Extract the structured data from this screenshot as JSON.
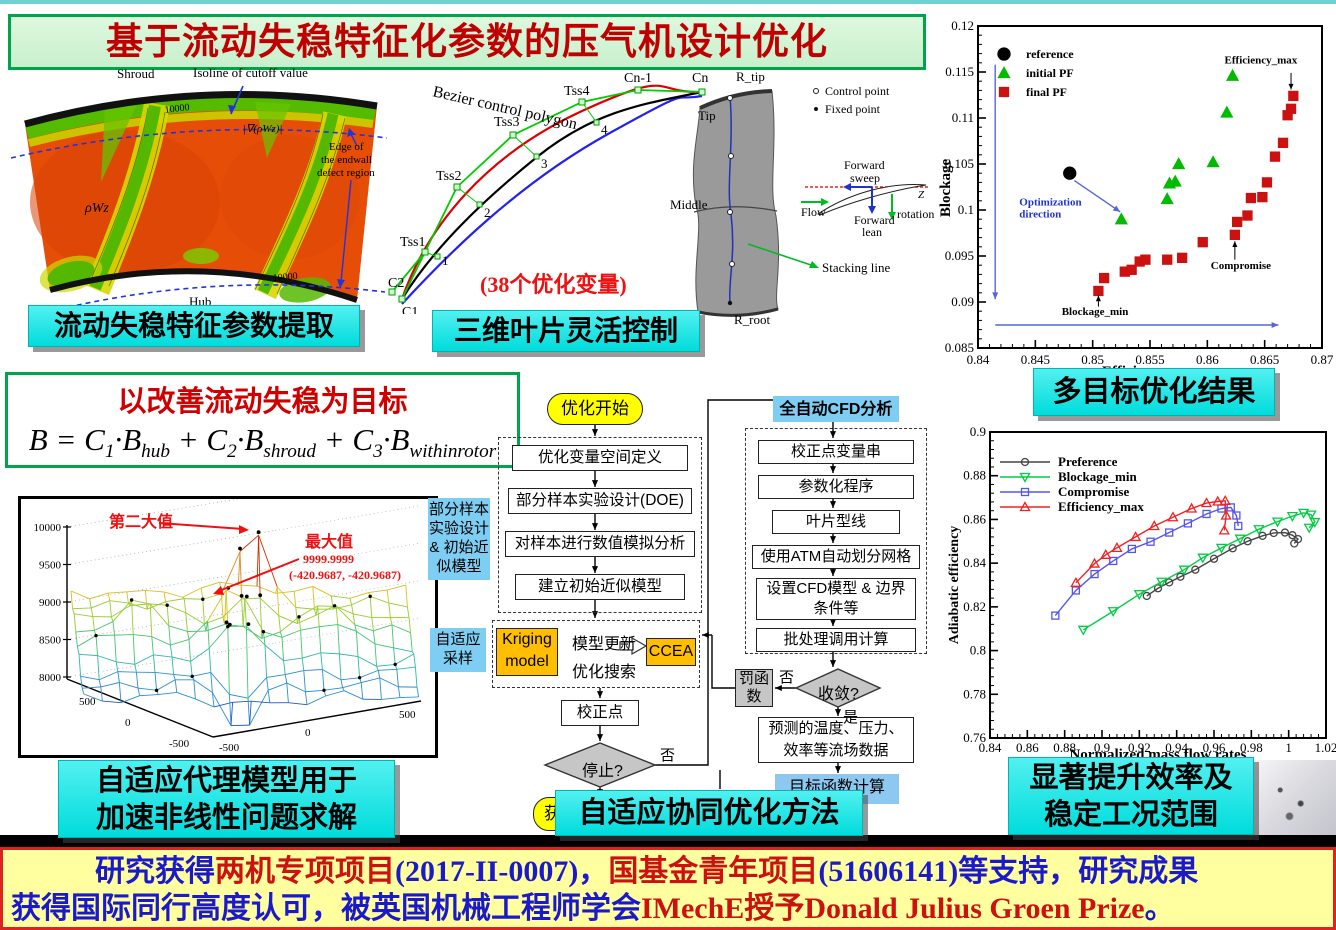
{
  "title": "基于流动失稳特征化参数的压气机设计优化",
  "contour": {
    "shroud": "Shroud",
    "hub": "Hub",
    "isoline": "Isoline of cutoff value",
    "value_top": "10000",
    "value_bottom": "10000",
    "grad_label": "|∇(ρWz)|",
    "field_label": "ρWz",
    "edge_l1": "Edge of",
    "edge_l2": "the endwall",
    "edge_l3": "defect region",
    "caption": "流动失稳特征参数提取"
  },
  "bezier": {
    "polygon_label": "Bezier control polygon",
    "tss": [
      "Tss1",
      "Tss2",
      "Tss3",
      "Tss4"
    ],
    "c1": "C1",
    "c2": "C2",
    "cn1": "Cn-1",
    "cn": "Cn",
    "nums": [
      "1",
      "2",
      "3",
      "4"
    ],
    "note": "(38个优化变量)",
    "caption": "三维叶片灵活控制"
  },
  "blade": {
    "r_tip": "R_tip",
    "tip": "Tip",
    "middle": "Middle",
    "r_root": "R_root",
    "stacking": "Stacking line",
    "legend_control": "Control point",
    "legend_fixed": "Fixed point",
    "fs1": "Forward",
    "fs2": "sweep",
    "fl1": "Forward",
    "fl2": "lean",
    "flow": "Flow",
    "rotation": "rotation",
    "z": "Z"
  },
  "scatter_caption": "多目标优化结果",
  "objective": {
    "heading": "以改善流动失稳为目标",
    "f": {
      "lhs": "B",
      "eq": " = ",
      "c": "C",
      "s1": "1",
      "s2": "2",
      "s3": "3",
      "dot": "·",
      "b": "B",
      "hub": "hub",
      "shroud": "shroud",
      "rotor": "withinrotor",
      "plus": " + "
    }
  },
  "surface": {
    "second_max": "第二大值",
    "max_label": "最大值",
    "max_value": "9999.9999",
    "max_coord": "(-420.9687, -420.9687)",
    "caption_l1": "自适应代理模型用于",
    "caption_l2": "加速非线性问题求解"
  },
  "flow": {
    "start": "优化开始",
    "left_steps": [
      "优化变量空间定义",
      "部分样本实验设计(DOE)",
      "对样本进行数值模拟分析",
      "建立初始近似模型"
    ],
    "side1_l1": "部分样本",
    "side1_l2": "实验设计",
    "side1_l3": "& 初始近",
    "side1_l4": "似模型",
    "side2_l1": "自适应",
    "side2_l2": "采样",
    "kriging_l1": "Kriging",
    "kriging_l2": "model",
    "ccea": "CCEA",
    "model_update": "模型更新",
    "opt_search": "优化搜索",
    "correction": "校正点",
    "stop": "停止?",
    "no1": "否",
    "yes1": "是",
    "result_partial": "获",
    "cfd_title": "全自动CFD分析",
    "right_steps": [
      "校正点变量串",
      "参数化程序",
      "叶片型线",
      "使用ATM自动划分网格",
      "设置CFD模型 & 边界",
      "条件等",
      "批处理调用计算"
    ],
    "converge": "收敛?",
    "no2": "否",
    "yes2": "是",
    "penalty_l1": "罚函",
    "penalty_l2": "数",
    "predicted_l1": "预测的温度、压力、",
    "predicted_l2": "效率等流场数据",
    "objective_calc": "目标函数计算",
    "caption": "自适应协同优化方法"
  },
  "perf_caption_l1": "显著提升效率及",
  "perf_caption_l2": "稳定工况范围",
  "footer": {
    "line1": [
      {
        "text": "研究获得"
      },
      {
        "text": "两机专项项目"
      },
      {
        "text": "(2017-II-0007)，"
      },
      {
        "text": "国基金青年项目"
      },
      {
        "text": "(51606141)等支持，研究成果"
      }
    ],
    "line2": [
      {
        "text": "获得国际同行高度认可，被英国机械工程师学会"
      },
      {
        "text": "IMechE授予Donald Julius Groen Prize"
      },
      {
        "text": "。"
      }
    ]
  },
  "colors": {
    "caption_bg": "#00dcdc",
    "title_text": "#c00000",
    "green_border": "#00a54a",
    "footer_bg": "#ffffa0",
    "footer_blue": "#1a1acc",
    "footer_red": "#cc1111",
    "flow_blue": "#7ecdf2",
    "flow_orange": "#ffbf00",
    "flow_yellow": "#ffff00",
    "flow_gray": "#c6c6c6"
  },
  "chart_data": [
    {
      "type": "scatter",
      "xlabel": "Efficiency",
      "ylabel": "Blockage",
      "xlim": [
        0.84,
        0.87
      ],
      "ylim": [
        0.085,
        0.12
      ],
      "xticks": [
        0.84,
        0.845,
        0.85,
        0.855,
        0.86,
        0.865,
        0.87
      ],
      "yticks": [
        0.085,
        0.09,
        0.095,
        0.1,
        0.105,
        0.11,
        0.115,
        0.12
      ],
      "series": [
        {
          "name": "reference",
          "marker": "circle",
          "color": "#000000",
          "points": [
            [
              0.848,
              0.104
            ]
          ]
        },
        {
          "name": "initial PF",
          "marker": "triangle-up",
          "color": "#00bb00",
          "points": [
            [
              0.8525,
              0.099
            ],
            [
              0.8565,
              0.1012
            ],
            [
              0.8567,
              0.1029
            ],
            [
              0.8572,
              0.1031
            ],
            [
              0.8575,
              0.105
            ],
            [
              0.8605,
              0.1052
            ],
            [
              0.8617,
              0.1106
            ],
            [
              0.8622,
              0.1146
            ]
          ]
        },
        {
          "name": "final PF",
          "marker": "square",
          "color": "#cc1111",
          "points": [
            [
              0.8505,
              0.0912
            ],
            [
              0.851,
              0.0926
            ],
            [
              0.8528,
              0.0933
            ],
            [
              0.8534,
              0.0935
            ],
            [
              0.8541,
              0.0944
            ],
            [
              0.8546,
              0.0946
            ],
            [
              0.8565,
              0.0946
            ],
            [
              0.8578,
              0.0948
            ],
            [
              0.8596,
              0.0965
            ],
            [
              0.8624,
              0.0973
            ],
            [
              0.8626,
              0.0987
            ],
            [
              0.8635,
              0.0994
            ],
            [
              0.8638,
              0.1013
            ],
            [
              0.8648,
              0.1014
            ],
            [
              0.8652,
              0.103
            ],
            [
              0.8659,
              0.1058
            ],
            [
              0.8666,
              0.1073
            ],
            [
              0.867,
              0.1103
            ],
            [
              0.8673,
              0.111
            ],
            [
              0.8675,
              0.1124
            ]
          ]
        }
      ],
      "annotations": [
        {
          "lines": [
            "Efficiency_max"
          ],
          "tx": 0.8615,
          "ty": 0.1159,
          "color": "#000000",
          "ax": 0.8673,
          "ay": 0.1149,
          "bx": 0.8673,
          "by": 0.1131
        },
        {
          "lines": [
            "Compromise"
          ],
          "tx": 0.8603,
          "ty": 0.0936,
          "color": "#000000",
          "ax": 0.8624,
          "ay": 0.0946,
          "bx": 0.8624,
          "by": 0.0966
        },
        {
          "lines": [
            "Blockage_min"
          ],
          "tx": 0.8473,
          "ty": 0.0886,
          "color": "#000000",
          "ax": 0.8505,
          "ay": 0.0895,
          "bx": 0.8505,
          "by": 0.0907
        },
        {
          "lines": [
            "Optimization",
            "direction"
          ],
          "tx": 0.8436,
          "ty": 0.1005,
          "color": "#2233cc"
        }
      ],
      "guides": [
        {
          "from": [
            0.8415,
            0.1158
          ],
          "to": [
            0.8415,
            0.0903
          ]
        },
        {
          "from": [
            0.8415,
            0.0875
          ],
          "to": [
            0.8662,
            0.0875
          ]
        },
        {
          "from": [
            0.8484,
            0.1032
          ],
          "to": [
            0.8524,
            0.0998
          ]
        }
      ]
    },
    {
      "type": "line",
      "xlabel": "Normalized mass flow rates",
      "ylabel": "Adiabatic efficiency",
      "xlim": [
        0.84,
        1.02
      ],
      "ylim": [
        0.76,
        0.9
      ],
      "xticks": [
        0.84,
        0.86,
        0.88,
        0.9,
        0.92,
        0.94,
        0.96,
        0.98,
        1,
        1.02
      ],
      "yticks": [
        0.76,
        0.78,
        0.8,
        0.82,
        0.84,
        0.86,
        0.88,
        0.9
      ],
      "series": [
        {
          "name": "Preference",
          "color": "#444444",
          "marker": "circle",
          "points": [
            [
              0.924,
              0.825
            ],
            [
              0.93,
              0.8285
            ],
            [
              0.936,
              0.8312
            ],
            [
              0.942,
              0.8338
            ],
            [
              0.95,
              0.837
            ],
            [
              0.96,
              0.842
            ],
            [
              0.97,
              0.8468
            ],
            [
              0.978,
              0.85
            ],
            [
              0.986,
              0.8525
            ],
            [
              0.992,
              0.8538
            ],
            [
              0.998,
              0.854
            ],
            [
              1.002,
              0.8528
            ],
            [
              1.005,
              0.851
            ],
            [
              1.003,
              0.849
            ]
          ]
        },
        {
          "name": "Blockage_min",
          "color": "#00cc44",
          "marker": "triangle-down",
          "points": [
            [
              0.89,
              0.8095
            ],
            [
              0.906,
              0.818
            ],
            [
              0.92,
              0.8258
            ],
            [
              0.932,
              0.8315
            ],
            [
              0.944,
              0.837
            ],
            [
              0.954,
              0.8425
            ],
            [
              0.964,
              0.847
            ],
            [
              0.974,
              0.8512
            ],
            [
              0.984,
              0.8555
            ],
            [
              0.994,
              0.859
            ],
            [
              1.002,
              0.8615
            ],
            [
              1.008,
              0.863
            ],
            [
              1.012,
              0.8622
            ],
            [
              1.014,
              0.8588
            ],
            [
              1.011,
              0.8562
            ]
          ]
        },
        {
          "name": "Compromise",
          "color": "#5555ee",
          "marker": "square",
          "points": [
            [
              0.875,
              0.816
            ],
            [
              0.886,
              0.8275
            ],
            [
              0.896,
              0.835
            ],
            [
              0.906,
              0.841
            ],
            [
              0.916,
              0.8465
            ],
            [
              0.926,
              0.8498
            ],
            [
              0.936,
              0.854
            ],
            [
              0.946,
              0.8582
            ],
            [
              0.956,
              0.8625
            ],
            [
              0.964,
              0.865
            ],
            [
              0.969,
              0.8655
            ],
            [
              0.972,
              0.8618
            ],
            [
              0.973,
              0.857
            ]
          ]
        },
        {
          "name": "Efficiency_max",
          "color": "#ee2222",
          "marker": "triangle-up",
          "points": [
            [
              0.886,
              0.831
            ],
            [
              0.896,
              0.8398
            ],
            [
              0.902,
              0.8438
            ],
            [
              0.908,
              0.847
            ],
            [
              0.918,
              0.852
            ],
            [
              0.928,
              0.857
            ],
            [
              0.938,
              0.861
            ],
            [
              0.948,
              0.865
            ],
            [
              0.956,
              0.8675
            ],
            [
              0.962,
              0.8682
            ],
            [
              0.966,
              0.8685
            ],
            [
              0.9665,
              0.8618
            ],
            [
              0.9655,
              0.855
            ]
          ]
        }
      ]
    },
    {
      "type": "surface",
      "zticks": [
        10000,
        9500,
        9000,
        8500,
        8000
      ],
      "x_axis_ticks": [
        500,
        0,
        -500
      ],
      "y_axis_ticks": [
        -500,
        0,
        500
      ],
      "zlim": [
        8000,
        10000
      ]
    }
  ]
}
